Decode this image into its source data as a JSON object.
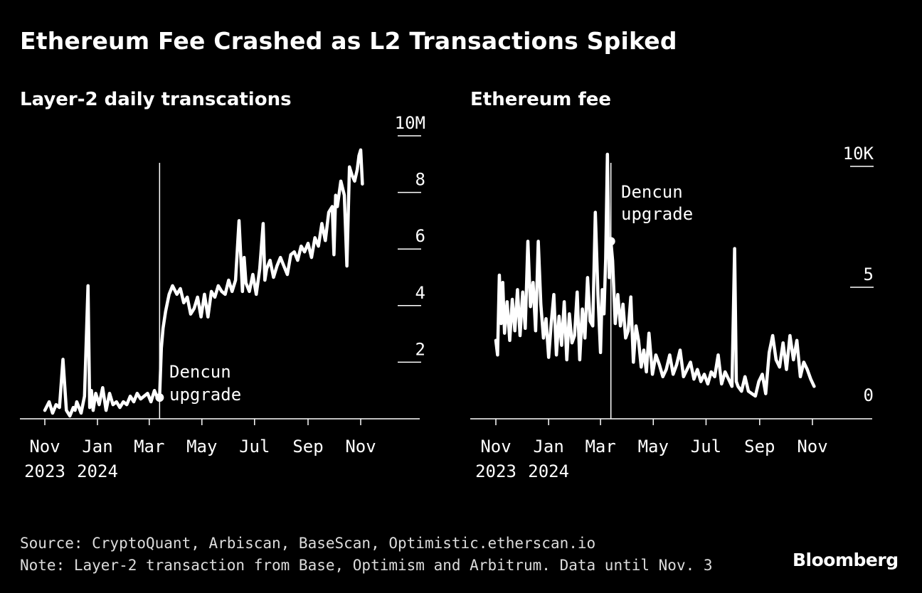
{
  "title": "Ethereum Fee Crashed as L2 Transactions Spiked",
  "source": "Source: CryptoQuant, Arbiscan, BaseScan, Optimistic.etherscan.io",
  "note": "Note: Layer-2 transaction from Base, Optimism and Arbitrum. Data until Nov. 3",
  "brand": "Bloomberg",
  "colors": {
    "background": "#000000",
    "line": "#ffffff",
    "footnote": "#dcdcdc"
  },
  "chart_data": [
    {
      "type": "line",
      "title": "Layer-2 daily transcations",
      "y_ticks": [
        "2",
        "4",
        "6",
        "8",
        "10M"
      ],
      "y_tick_values": [
        2,
        4,
        6,
        8,
        10
      ],
      "ylim": [
        0,
        10
      ],
      "y_unit": "M",
      "x_tick_labels": [
        "Nov",
        "Jan",
        "Mar",
        "May",
        "Jul",
        "Sep",
        "Nov"
      ],
      "x_year_labels": [
        "2023",
        "2024"
      ],
      "annotation": {
        "line1": "Dencun",
        "line2": "upgrade",
        "date": "2024-03-13",
        "value": 0.75
      },
      "series": [
        {
          "x": [
            "2023-11-01",
            "2023-11-06",
            "2023-11-10",
            "2023-11-14",
            "2023-11-18",
            "2023-11-22",
            "2023-11-26",
            "2023-11-30",
            "2023-12-04",
            "2023-12-06",
            "2023-12-08",
            "2023-12-13",
            "2023-12-17",
            "2023-12-21",
            "2023-12-23",
            "2023-12-25",
            "2023-12-27",
            "2023-12-30",
            "2024-01-03",
            "2024-01-07",
            "2024-01-11",
            "2024-01-15",
            "2024-01-19",
            "2024-01-23",
            "2024-01-27",
            "2024-01-31",
            "2024-02-04",
            "2024-02-08",
            "2024-02-12",
            "2024-02-16",
            "2024-02-20",
            "2024-02-24",
            "2024-02-28",
            "2024-03-03",
            "2024-03-07",
            "2024-03-11",
            "2024-03-13",
            "2024-03-15",
            "2024-03-17",
            "2024-03-20",
            "2024-03-24",
            "2024-03-28",
            "2024-04-02",
            "2024-04-06",
            "2024-04-10",
            "2024-04-14",
            "2024-04-18",
            "2024-04-22",
            "2024-04-26",
            "2024-04-30",
            "2024-05-04",
            "2024-05-08",
            "2024-05-12",
            "2024-05-16",
            "2024-05-20",
            "2024-05-24",
            "2024-05-28",
            "2024-06-01",
            "2024-06-05",
            "2024-06-09",
            "2024-06-13",
            "2024-06-17",
            "2024-06-19",
            "2024-06-21",
            "2024-06-25",
            "2024-06-29",
            "2024-07-03",
            "2024-07-07",
            "2024-07-11",
            "2024-07-13",
            "2024-07-15",
            "2024-07-19",
            "2024-07-23",
            "2024-07-27",
            "2024-07-31",
            "2024-08-04",
            "2024-08-08",
            "2024-08-12",
            "2024-08-16",
            "2024-08-20",
            "2024-08-24",
            "2024-08-28",
            "2024-09-01",
            "2024-09-05",
            "2024-09-09",
            "2024-09-13",
            "2024-09-17",
            "2024-09-21",
            "2024-09-25",
            "2024-09-29",
            "2024-10-01",
            "2024-10-03",
            "2024-10-05",
            "2024-10-09",
            "2024-10-13",
            "2024-10-16",
            "2024-10-19",
            "2024-10-22",
            "2024-10-25",
            "2024-10-28",
            "2024-10-30",
            "2024-11-01",
            "2024-11-03"
          ],
          "values": [
            0.3,
            0.6,
            0.2,
            0.5,
            0.4,
            2.1,
            0.3,
            0.1,
            0.4,
            0.3,
            0.6,
            0.2,
            0.8,
            4.7,
            0.4,
            1.0,
            0.3,
            0.9,
            0.5,
            1.1,
            0.3,
            0.9,
            0.5,
            0.6,
            0.4,
            0.6,
            0.5,
            0.8,
            0.6,
            0.9,
            0.7,
            0.8,
            0.9,
            0.6,
            1.0,
            0.7,
            0.75,
            2.5,
            3.2,
            3.8,
            4.4,
            4.7,
            4.4,
            4.6,
            4.1,
            4.3,
            3.7,
            3.9,
            4.3,
            3.6,
            4.4,
            3.6,
            4.5,
            4.3,
            4.7,
            4.5,
            4.4,
            4.9,
            4.5,
            4.9,
            7.0,
            4.5,
            5.7,
            4.8,
            4.5,
            5.1,
            4.4,
            5.3,
            6.9,
            4.9,
            5.3,
            5.6,
            5.0,
            5.4,
            5.7,
            5.4,
            5.1,
            5.8,
            5.9,
            5.6,
            6.1,
            5.9,
            6.2,
            5.7,
            6.4,
            6.1,
            6.9,
            6.3,
            7.3,
            7.5,
            5.8,
            7.9,
            7.5,
            8.4,
            7.9,
            5.4,
            8.9,
            8.6,
            8.4,
            8.8,
            9.3,
            9.5,
            8.3
          ]
        }
      ]
    },
    {
      "type": "line",
      "title": "Ethereum fee",
      "y_ticks": [
        "0",
        "5",
        "10K"
      ],
      "y_tick_values": [
        0,
        5,
        10
      ],
      "ylim": [
        0,
        10
      ],
      "y_unit": "K",
      "x_tick_labels": [
        "Nov",
        "Jan",
        "Mar",
        "May",
        "Jul",
        "Sep",
        "Nov"
      ],
      "x_year_labels": [
        "2023",
        "2024"
      ],
      "annotation": {
        "line1": "Dencun",
        "line2": "upgrade",
        "date": "2024-03-13",
        "value": 6.9
      },
      "series": [
        {
          "x": [
            "2023-11-01",
            "2023-11-03",
            "2023-11-05",
            "2023-11-07",
            "2023-11-09",
            "2023-11-11",
            "2023-11-14",
            "2023-11-17",
            "2023-11-20",
            "2023-11-23",
            "2023-11-26",
            "2023-11-29",
            "2023-12-02",
            "2023-12-05",
            "2023-12-08",
            "2023-12-11",
            "2023-12-14",
            "2023-12-17",
            "2023-12-20",
            "2023-12-23",
            "2023-12-26",
            "2023-12-29",
            "2024-01-01",
            "2024-01-04",
            "2024-01-07",
            "2024-01-10",
            "2024-01-13",
            "2024-01-16",
            "2024-01-19",
            "2024-01-22",
            "2024-01-25",
            "2024-01-28",
            "2024-01-31",
            "2024-02-03",
            "2024-02-06",
            "2024-02-09",
            "2024-02-12",
            "2024-02-15",
            "2024-02-18",
            "2024-02-21",
            "2024-02-24",
            "2024-02-27",
            "2024-03-01",
            "2024-03-03",
            "2024-03-05",
            "2024-03-07",
            "2024-03-09",
            "2024-03-11",
            "2024-03-13",
            "2024-03-15",
            "2024-03-18",
            "2024-03-21",
            "2024-03-24",
            "2024-03-27",
            "2024-03-30",
            "2024-04-02",
            "2024-04-05",
            "2024-04-08",
            "2024-04-11",
            "2024-04-14",
            "2024-04-17",
            "2024-04-20",
            "2024-04-23",
            "2024-04-26",
            "2024-04-30",
            "2024-05-04",
            "2024-05-08",
            "2024-05-12",
            "2024-05-16",
            "2024-05-20",
            "2024-05-24",
            "2024-05-28",
            "2024-06-01",
            "2024-06-05",
            "2024-06-09",
            "2024-06-13",
            "2024-06-17",
            "2024-06-21",
            "2024-06-25",
            "2024-06-29",
            "2024-07-03",
            "2024-07-07",
            "2024-07-11",
            "2024-07-15",
            "2024-07-19",
            "2024-07-23",
            "2024-07-27",
            "2024-07-31",
            "2024-08-03",
            "2024-08-05",
            "2024-08-07",
            "2024-08-11",
            "2024-08-15",
            "2024-08-19",
            "2024-08-23",
            "2024-08-27",
            "2024-08-31",
            "2024-09-04",
            "2024-09-08",
            "2024-09-12",
            "2024-09-16",
            "2024-09-20",
            "2024-09-24",
            "2024-09-28",
            "2024-10-02",
            "2024-10-06",
            "2024-10-10",
            "2024-10-14",
            "2024-10-18",
            "2024-10-22",
            "2024-10-26",
            "2024-10-30",
            "2024-11-03"
          ],
          "values": [
            2.8,
            2.2,
            5.5,
            3.5,
            5.2,
            3.1,
            4.4,
            2.8,
            4.5,
            3.2,
            4.9,
            3.0,
            4.8,
            3.3,
            6.9,
            4.2,
            5.2,
            3.2,
            6.9,
            4.3,
            2.9,
            3.7,
            2.1,
            3.5,
            4.7,
            2.2,
            3.8,
            2.6,
            4.4,
            2.0,
            3.9,
            2.7,
            3.0,
            4.8,
            2.0,
            4.1,
            2.9,
            5.4,
            3.6,
            3.4,
            8.1,
            4.7,
            2.3,
            4.9,
            3.9,
            6.2,
            10.5,
            5.4,
            6.9,
            6.1,
            3.5,
            4.7,
            3.4,
            4.3,
            2.9,
            3.2,
            4.6,
            1.9,
            3.4,
            2.8,
            1.7,
            2.4,
            1.5,
            3.1,
            1.4,
            2.2,
            1.8,
            1.3,
            1.6,
            2.2,
            1.4,
            1.8,
            2.4,
            1.3,
            1.6,
            1.9,
            1.2,
            1.6,
            1.1,
            1.4,
            1.0,
            1.5,
            1.3,
            2.2,
            1.0,
            1.5,
            1.2,
            0.9,
            6.6,
            1.1,
            0.9,
            0.7,
            1.3,
            0.7,
            0.6,
            0.5,
            1.1,
            1.4,
            0.6,
            2.3,
            3.0,
            2.0,
            1.7,
            2.7,
            1.6,
            3.0,
            2.0,
            2.8,
            1.3,
            1.9,
            1.6,
            1.2,
            0.9
          ]
        }
      ]
    }
  ]
}
